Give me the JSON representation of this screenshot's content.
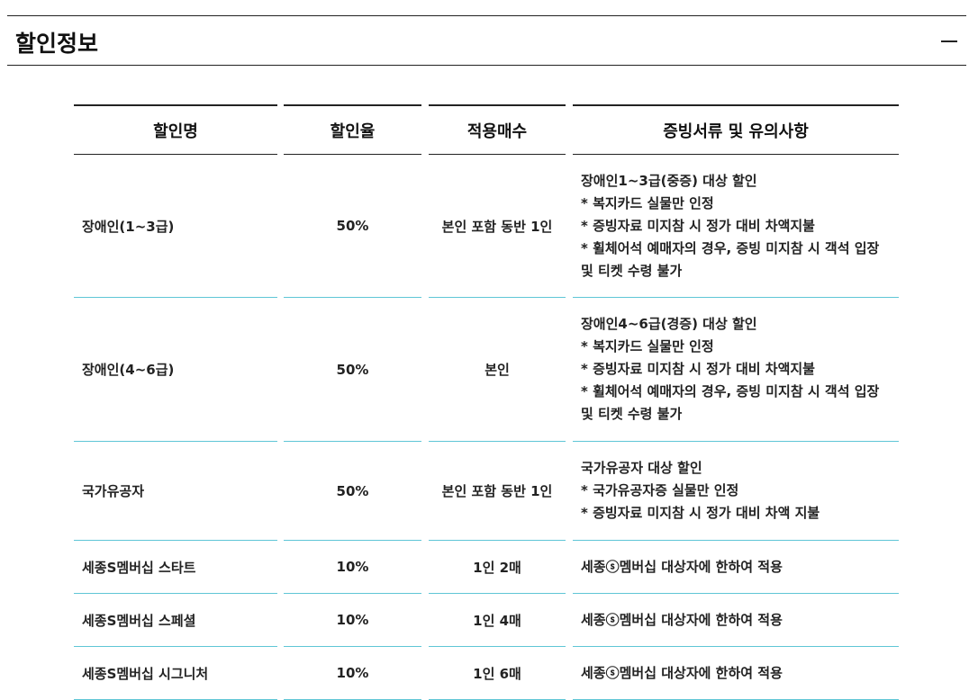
{
  "section": {
    "title": "할인정보",
    "collapse_icon": "minus-icon"
  },
  "table": {
    "headers": [
      "할인명",
      "할인율",
      "적용매수",
      "증빙서류 및 유의사항"
    ],
    "rows": [
      {
        "name": "장애인(1~3급)",
        "rate": "50%",
        "count": "본인 포함 동반 1인",
        "notes": [
          "장애인1~3급(중증) 대상 할인",
          "* 복지카드 실물만 인정",
          "* 증빙자료 미지참 시 정가 대비 차액지불",
          "* 휠체어석 예매자의 경우, 증빙 미지참 시 객석 입장",
          "및 티켓 수령 불가"
        ]
      },
      {
        "name": "장애인(4~6급)",
        "rate": "50%",
        "count": "본인",
        "notes": [
          "장애인4~6급(경증) 대상 할인",
          "* 복지카드 실물만 인정",
          "* 증빙자료 미지참 시 정가 대비 차액지불",
          "* 휠체어석 예매자의 경우, 증빙 미지참 시 객석 입장",
          "및 티켓 수령 불가"
        ]
      },
      {
        "name": "국가유공자",
        "rate": "50%",
        "count": "본인 포함 동반 1인",
        "notes": [
          "국가유공자 대상 할인",
          "* 국가유공자증 실물만 인정",
          "* 증빙자료 미지참 시 정가 대비 차액 지불"
        ]
      },
      {
        "name": "세종S멤버십 스타트",
        "rate": "10%",
        "count": "1인 2매",
        "notes": [
          "세종ⓢ멤버십 대상자에 한하여 적용"
        ]
      },
      {
        "name": "세종S멤버십 스페셜",
        "rate": "10%",
        "count": "1인 4매",
        "notes": [
          "세종ⓢ멤버십 대상자에 한하여 적용"
        ]
      },
      {
        "name": "세종S멤버십 시그니처",
        "rate": "10%",
        "count": "1인 6매",
        "notes": [
          "세종ⓢ멤버십 대상자에 한하여 적용"
        ]
      }
    ]
  },
  "colors": {
    "row_divider": "#5fc6d6",
    "header_border": "#222222"
  }
}
